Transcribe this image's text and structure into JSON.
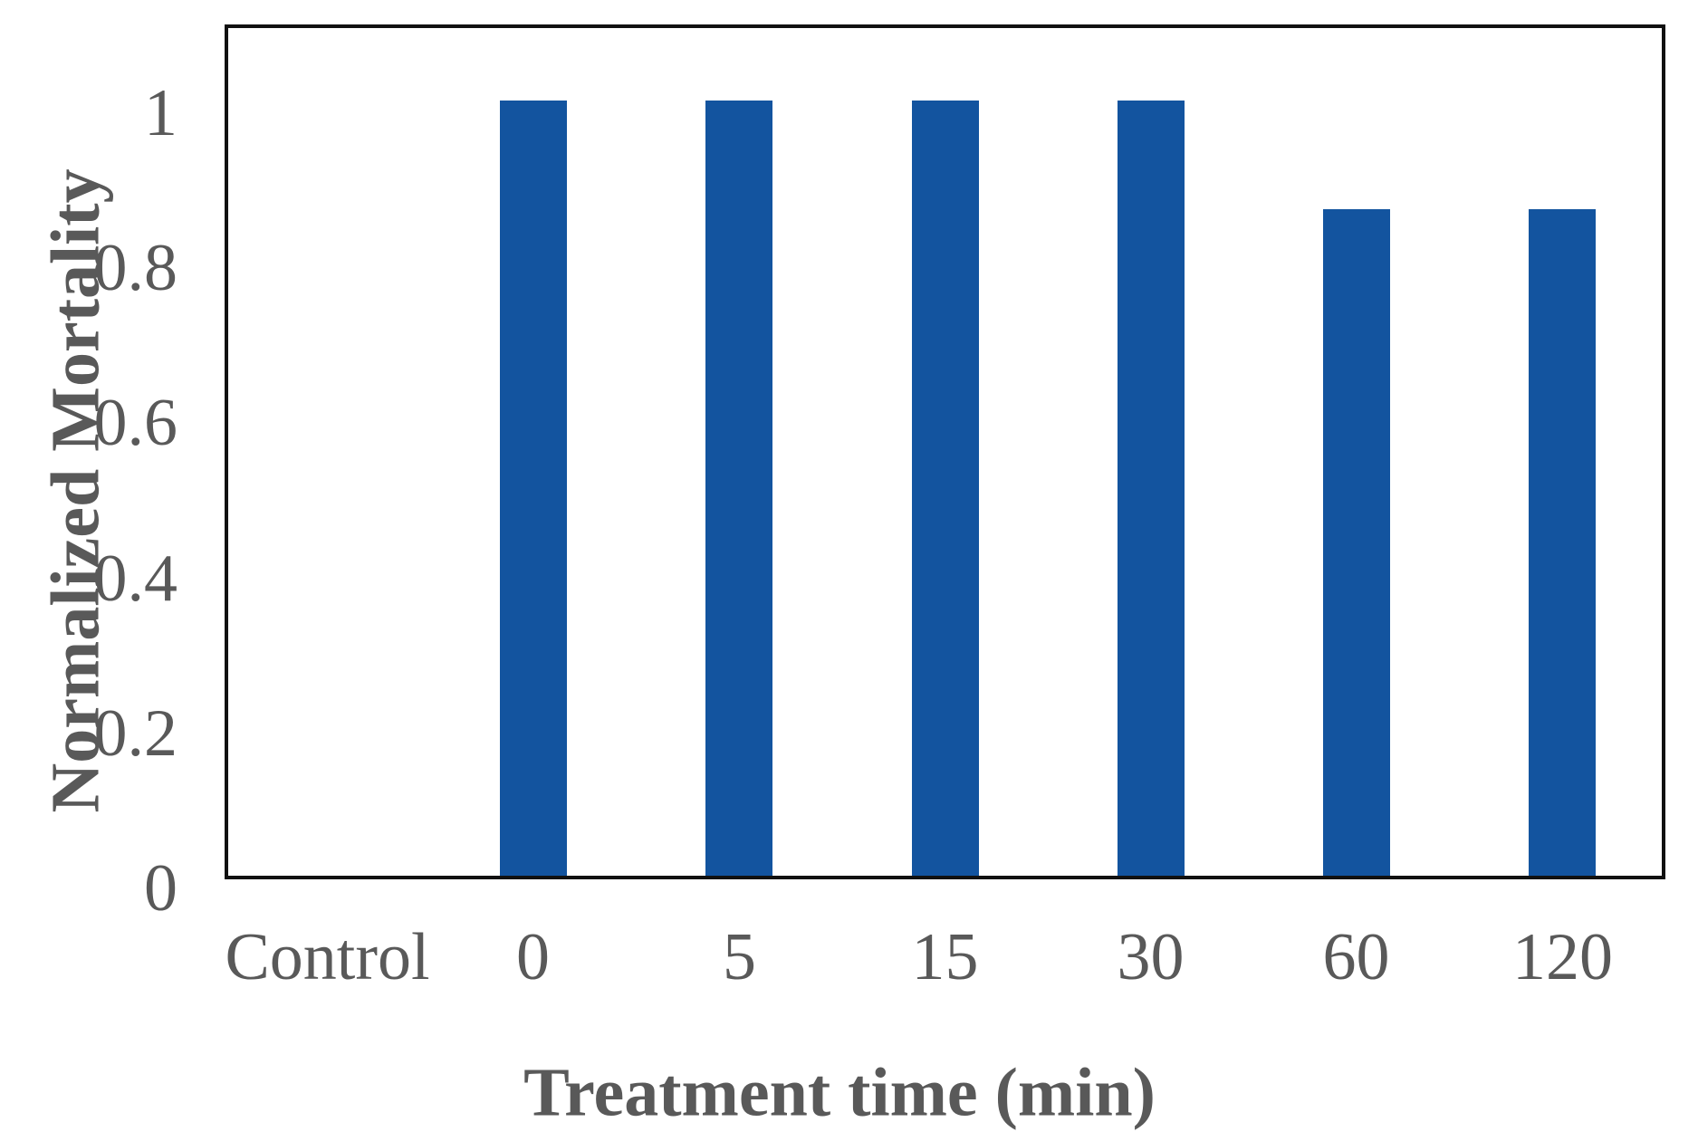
{
  "chart_data": {
    "type": "bar",
    "title": "",
    "xlabel": "Treatment time (min)",
    "ylabel": "Normalized Mortality",
    "categories": [
      "Control",
      "0",
      "5",
      "15",
      "30",
      "60",
      "120"
    ],
    "values": [
      0,
      1,
      1,
      1,
      1,
      0.86,
      0.86
    ],
    "ylim": [
      0,
      1.1
    ],
    "yticks": [
      "0",
      "0.2",
      "0.4",
      "0.6",
      "0.8",
      "1"
    ],
    "grid": false,
    "legend": false,
    "bar_color": "#13549f",
    "axis_color": "#111111",
    "text_color": "#595959"
  }
}
